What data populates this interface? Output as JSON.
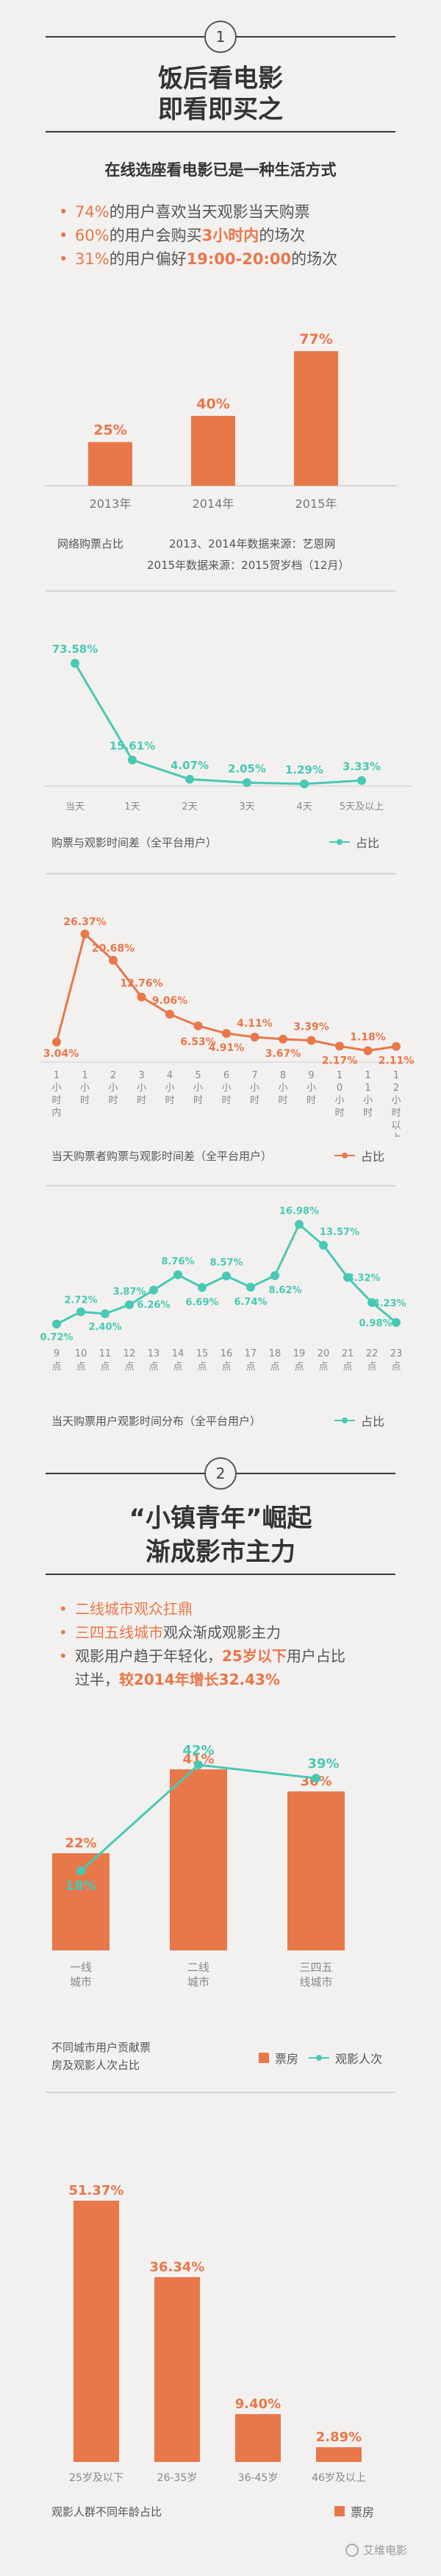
{
  "section1": {
    "number": "1",
    "title_line1": "饭后看电影",
    "title_line2": "即看即买之",
    "subtitle": "在线选座看电影已是一种生活方式",
    "bullets": [
      {
        "pct": "74%",
        "pre": "",
        "text": "的用户喜欢当天观影当天购票",
        "hl": "",
        "post": ""
      },
      {
        "pct": "60%",
        "pre": "",
        "text": "的用户会购买",
        "hl": "3小时内",
        "post": "的场次"
      },
      {
        "pct": "31%",
        "pre": "",
        "text": "的用户偏好",
        "hl": "19:00-20:00",
        "post": "的场次"
      }
    ]
  },
  "s1_sources": {
    "label": "网络购票占比",
    "src1": "2013、2014年数据来源：艺恩网",
    "src2": "2015年数据来源：2015贺岁档（12月）"
  },
  "chart1_caption": "购票与观影时间差（全平台用户）",
  "chart1_legend": "占比",
  "chart2_caption": "当天购票者购票与观影时间差（全平台用户）",
  "chart2_legend": "占比",
  "chart3_caption": "当天购票用户观影时间分布（全平台用户）",
  "chart3_legend": "占比",
  "section2": {
    "number": "2",
    "title_line1": "“小镇青年”崛起",
    "title_line2": "渐成影市主力",
    "bullets": [
      {
        "hl": "二线城市观众扛鼎",
        "post": ""
      },
      {
        "hl": "三四五线城市",
        "post": "观众渐成观影主力"
      },
      {
        "hl": "",
        "post": "观影用户趋于年轻化，",
        "hl2": "25岁以下",
        "post2": "用户占比"
      }
    ],
    "bullet3_line2": "过半，",
    "bullet3_line2_hl": "较2014年增长32.43%"
  },
  "chart4_caption_line1": "不同城市用户贡献票",
  "chart4_caption_line2": "房及观影人次占比",
  "chart4_legend_bar": "票房",
  "chart4_legend_line": "观影人次",
  "chart5_caption": "观影人群不同年龄占比",
  "chart5_legend_bar": "票房",
  "watermark": "艾维电影",
  "colors": {
    "orange": "#e8774a",
    "teal": "#47c9b4",
    "background": "#f3f1ef"
  },
  "chart_data": [
    {
      "type": "bar",
      "categories": [
        "2013年",
        "2014年",
        "2015年"
      ],
      "values": [
        25,
        40,
        77
      ],
      "labels": [
        "25%",
        "40%",
        "77%"
      ],
      "title": "",
      "xlabel": "网络购票占比",
      "ylabel": ""
    },
    {
      "type": "line",
      "categories": [
        "当天",
        "1天",
        "2天",
        "3天",
        "4天",
        "5天及以上"
      ],
      "values": [
        73.58,
        15.61,
        4.07,
        2.05,
        1.29,
        3.33
      ],
      "labels": [
        "73.58%",
        "15.61%",
        "4.07%",
        "2.05%",
        "1.29%",
        "3.33%"
      ],
      "title": "购票与观影时间差（全平台用户）",
      "legend": "占比"
    },
    {
      "type": "line",
      "categories": [
        "1小时内",
        "1小时",
        "2小时",
        "3小时",
        "4小时",
        "5小时",
        "6小时",
        "7小时",
        "8小时",
        "9小时",
        "10小时",
        "11小时",
        "12小时以上"
      ],
      "values": [
        3.04,
        26.37,
        20.68,
        12.76,
        9.06,
        6.53,
        4.91,
        4.11,
        3.67,
        3.39,
        2.17,
        1.18,
        2.11
      ],
      "labels": [
        "3.04%",
        "26.37%",
        "20.68%",
        "12.76%",
        "9.06%",
        "6.53%",
        "4.91%",
        "4.11%",
        "3.67%",
        "3.39%",
        "2.17%",
        "1.18%",
        "2.11%"
      ],
      "title": "当天购票者购票与观影时间差（全平台用户）",
      "legend": "占比"
    },
    {
      "type": "line",
      "categories": [
        "9点",
        "10点",
        "11点",
        "12点",
        "13点",
        "14点",
        "15点",
        "16点",
        "17点",
        "18点",
        "19点",
        "20点",
        "21点",
        "22点",
        "23点"
      ],
      "values": [
        0.72,
        2.72,
        2.4,
        3.87,
        6.26,
        8.76,
        6.69,
        8.57,
        6.74,
        8.62,
        16.98,
        13.57,
        8.32,
        4.23,
        0.98
      ],
      "labels": [
        "0.72%",
        "2.72%",
        "2.40%",
        "3.87%",
        "6.26%",
        "8.76%",
        "6.69%",
        "8.57%",
        "6.74%",
        "8.62%",
        "16.98%",
        "13.57%",
        "8.32%",
        "4.23%",
        "0.98%"
      ],
      "title": "当天购票用户观影时间分布（全平台用户）",
      "legend": "占比"
    },
    {
      "type": "bar",
      "categories": [
        "一线城市",
        "二线城市",
        "三四五线城市"
      ],
      "series": [
        {
          "name": "票房",
          "values": [
            22,
            41,
            36
          ],
          "labels": [
            "22%",
            "41%",
            "36%"
          ]
        },
        {
          "name": "观影人次",
          "values": [
            18,
            42,
            39
          ],
          "labels": [
            "18%",
            "42%",
            "39%"
          ]
        }
      ],
      "title": "不同城市用户贡献票房及观影人次占比"
    },
    {
      "type": "bar",
      "categories": [
        "25岁及以下",
        "26-35岁",
        "36-45岁",
        "46岁及以上"
      ],
      "values": [
        51.37,
        36.34,
        9.4,
        2.89
      ],
      "labels": [
        "51.37%",
        "36.34%",
        "9.40%",
        "2.89%"
      ],
      "title": "观影人群不同年龄占比",
      "legend": "票房"
    }
  ]
}
